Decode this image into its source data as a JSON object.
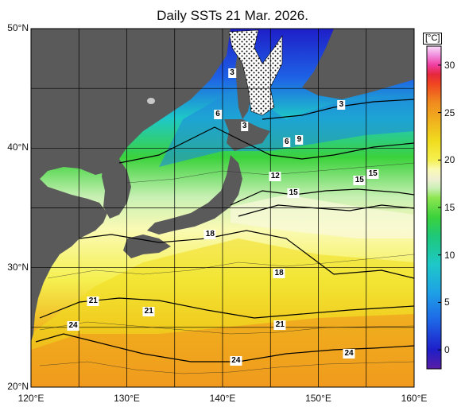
{
  "title": "Daily SSTs 21 Mar. 2026.",
  "colors": {
    "land": "#5a5a5a",
    "grid": "#000000",
    "sea_ice_pattern": "#ffffff"
  },
  "latitude_labels": [
    {
      "value": 50,
      "text": "50°N"
    },
    {
      "value": 40,
      "text": "40°N"
    },
    {
      "value": 30,
      "text": "30°N"
    },
    {
      "value": 20,
      "text": "20°N"
    }
  ],
  "longitude_labels": [
    {
      "value": 120,
      "text": "120°E"
    },
    {
      "value": 130,
      "text": "130°E"
    },
    {
      "value": 140,
      "text": "140°E"
    },
    {
      "value": 150,
      "text": "150°E"
    },
    {
      "value": 160,
      "text": "160°E"
    }
  ],
  "contour_labels": [
    {
      "lon": 141.0,
      "lat": 46.3,
      "text": "3"
    },
    {
      "lon": 142.3,
      "lat": 41.8,
      "text": "3"
    },
    {
      "lon": 152.4,
      "lat": 43.6,
      "text": "3"
    },
    {
      "lon": 139.5,
      "lat": 42.8,
      "text": "6"
    },
    {
      "lon": 146.7,
      "lat": 40.5,
      "text": "6"
    },
    {
      "lon": 148.0,
      "lat": 40.7,
      "text": "9"
    },
    {
      "lon": 145.5,
      "lat": 37.6,
      "text": "12"
    },
    {
      "lon": 154.3,
      "lat": 37.3,
      "text": "15"
    },
    {
      "lon": 155.7,
      "lat": 37.8,
      "text": "15"
    },
    {
      "lon": 147.4,
      "lat": 36.2,
      "text": "15"
    },
    {
      "lon": 138.7,
      "lat": 32.8,
      "text": "18"
    },
    {
      "lon": 145.9,
      "lat": 29.5,
      "text": "18"
    },
    {
      "lon": 126.5,
      "lat": 27.2,
      "text": "21"
    },
    {
      "lon": 132.3,
      "lat": 26.3,
      "text": "21"
    },
    {
      "lon": 146.0,
      "lat": 25.2,
      "text": "21"
    },
    {
      "lon": 124.4,
      "lat": 25.1,
      "text": "24"
    },
    {
      "lon": 153.2,
      "lat": 22.8,
      "text": "24"
    },
    {
      "lon": 141.4,
      "lat": 22.2,
      "text": "24"
    }
  ],
  "colorbar": {
    "unit": "[°C]",
    "min": -2,
    "max": 32,
    "ticks": [
      30,
      25,
      20,
      15,
      10,
      5,
      0
    ],
    "stops": [
      {
        "value": -2,
        "color": "#5a1ea6"
      },
      {
        "value": 0,
        "color": "#1e1ec8"
      },
      {
        "value": 3,
        "color": "#1e64e6"
      },
      {
        "value": 6,
        "color": "#1ea0e6"
      },
      {
        "value": 9,
        "color": "#1ec8c8"
      },
      {
        "value": 12,
        "color": "#1ec878"
      },
      {
        "value": 14,
        "color": "#3cd23c"
      },
      {
        "value": 16,
        "color": "#8ce650"
      },
      {
        "value": 17,
        "color": "#c8f0b4"
      },
      {
        "value": 18,
        "color": "#f0f0d2"
      },
      {
        "value": 19,
        "color": "#fafab4"
      },
      {
        "value": 20,
        "color": "#f5f050"
      },
      {
        "value": 22,
        "color": "#f0dc1e"
      },
      {
        "value": 24,
        "color": "#f0b41e"
      },
      {
        "value": 26,
        "color": "#f08c1e"
      },
      {
        "value": 28,
        "color": "#f04620"
      },
      {
        "value": 29,
        "color": "#e6283c"
      },
      {
        "value": 30,
        "color": "#f03ca0"
      },
      {
        "value": 31,
        "color": "#f08cdc"
      },
      {
        "value": 32,
        "color": "#fadcfa"
      }
    ]
  }
}
